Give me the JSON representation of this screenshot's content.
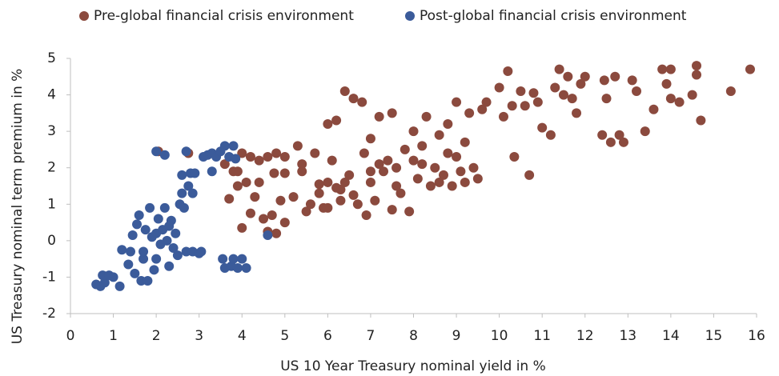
{
  "chart_data": {
    "type": "scatter",
    "xlabel": "US 10 Year Treasury nominal yield in %",
    "ylabel": "US Treasury nominal term premium in %",
    "xlim": [
      0,
      16
    ],
    "xticks": [
      0,
      1,
      2,
      3,
      4,
      5,
      6,
      7,
      8,
      9,
      10,
      11,
      12,
      13,
      14,
      15,
      16
    ],
    "ylim": [
      -2,
      5
    ],
    "yticks": [
      -2,
      -1,
      0,
      1,
      2,
      3,
      4,
      5
    ],
    "legend": "top",
    "grid": false,
    "series": [
      {
        "name": "Pre-global financial crisis environment",
        "color": "#8b4a3e",
        "x": [
          2.75,
          2.05,
          3.6,
          3.9,
          4.0,
          4.2,
          4.4,
          4.6,
          4.8,
          5.0,
          3.7,
          3.9,
          4.1,
          4.2,
          4.0,
          4.3,
          4.5,
          4.6,
          4.7,
          4.8,
          4.9,
          5.0,
          4.75,
          5.0,
          5.2,
          5.3,
          5.4,
          5.5,
          5.6,
          5.7,
          5.8,
          5.9,
          6.0,
          6.0,
          6.1,
          6.2,
          6.3,
          6.4,
          6.5,
          6.6,
          6.7,
          6.8,
          6.9,
          6.85,
          7.0,
          7.0,
          7.1,
          7.2,
          7.3,
          7.4,
          7.5,
          7.5,
          7.6,
          7.7,
          7.8,
          7.9,
          8.0,
          8.0,
          8.1,
          8.2,
          8.3,
          8.4,
          8.5,
          8.6,
          8.7,
          8.8,
          8.9,
          9.0,
          9.0,
          9.1,
          9.2,
          9.3,
          9.4,
          9.5,
          9.6,
          9.7,
          10.0,
          10.1,
          10.2,
          10.3,
          10.35,
          10.5,
          10.6,
          10.7,
          10.8,
          10.9,
          11.0,
          11.2,
          11.3,
          11.5,
          11.6,
          11.7,
          11.8,
          11.9,
          12.0,
          12.4,
          12.5,
          12.6,
          12.7,
          12.8,
          12.9,
          13.1,
          13.4,
          13.6,
          13.8,
          13.9,
          14.0,
          14.2,
          14.5,
          14.6,
          14.6,
          14.7,
          15.4,
          15.85,
          11.4,
          12.45,
          13.2,
          14.0,
          5.8,
          6.2,
          6.4,
          6.6,
          6.3,
          7.0,
          7.2,
          7.6,
          8.2,
          8.6,
          6.0,
          5.4,
          4.4,
          3.8,
          8.8,
          9.2
        ],
        "values": [
          2.4,
          2.45,
          2.1,
          1.9,
          2.4,
          2.3,
          2.2,
          2.3,
          2.4,
          2.3,
          1.15,
          1.5,
          1.6,
          0.75,
          0.35,
          1.2,
          0.6,
          0.25,
          0.7,
          0.2,
          1.1,
          0.5,
          1.85,
          1.85,
          1.2,
          2.6,
          2.1,
          0.8,
          1.0,
          2.4,
          1.3,
          0.9,
          1.6,
          3.2,
          2.2,
          3.3,
          1.4,
          4.1,
          1.8,
          3.9,
          1.0,
          3.8,
          0.7,
          2.4,
          1.6,
          2.8,
          1.1,
          3.4,
          1.9,
          2.2,
          3.5,
          0.85,
          2.0,
          1.3,
          2.5,
          0.8,
          2.2,
          3.0,
          1.7,
          2.6,
          3.4,
          1.5,
          2.0,
          2.9,
          1.8,
          3.2,
          1.5,
          3.8,
          2.3,
          1.9,
          2.7,
          3.5,
          2.0,
          1.7,
          3.6,
          3.8,
          4.2,
          3.4,
          4.65,
          3.7,
          2.3,
          4.1,
          3.7,
          1.8,
          4.05,
          3.8,
          3.1,
          2.9,
          4.2,
          4.0,
          4.5,
          3.9,
          3.5,
          4.3,
          4.5,
          2.9,
          3.9,
          2.7,
          4.5,
          2.9,
          2.7,
          4.4,
          3.0,
          3.6,
          4.7,
          4.3,
          3.9,
          3.8,
          4.0,
          4.8,
          4.55,
          3.3,
          4.1,
          4.7,
          4.7,
          4.4,
          4.1,
          4.7,
          1.55,
          1.45,
          1.6,
          1.25,
          1.1,
          1.9,
          2.1,
          1.5,
          2.1,
          1.6,
          0.9,
          1.9,
          1.6,
          1.9,
          2.4,
          1.6
        ]
      },
      {
        "name": "Post-global financial crisis environment",
        "color": "#3b5b9a",
        "x": [
          0.6,
          0.7,
          0.8,
          0.75,
          0.9,
          1.0,
          1.15,
          1.2,
          1.35,
          1.4,
          1.45,
          1.5,
          1.55,
          1.6,
          1.65,
          1.7,
          1.75,
          1.8,
          1.85,
          1.9,
          1.95,
          2.0,
          2.05,
          2.1,
          2.15,
          2.2,
          2.25,
          2.3,
          2.35,
          2.4,
          2.45,
          2.5,
          2.55,
          2.6,
          2.65,
          2.7,
          2.75,
          2.8,
          2.85,
          2.9,
          3.0,
          3.05,
          3.1,
          3.2,
          3.3,
          3.4,
          3.5,
          3.6,
          3.7,
          3.8,
          3.85,
          3.3,
          3.55,
          3.6,
          3.75,
          3.8,
          3.9,
          4.0,
          4.1,
          2.0,
          2.2,
          2.7,
          2.6,
          2.85,
          1.7,
          2.0,
          2.3,
          4.6
        ],
        "values": [
          -1.2,
          -1.25,
          -1.15,
          -0.95,
          -0.95,
          -1.0,
          -1.25,
          -0.25,
          -0.65,
          -0.3,
          0.15,
          -0.9,
          0.45,
          0.7,
          -1.1,
          -0.5,
          0.3,
          -1.1,
          0.9,
          0.1,
          -0.8,
          0.2,
          0.6,
          -0.1,
          0.3,
          0.9,
          0.0,
          -0.7,
          0.55,
          -0.2,
          0.2,
          -0.4,
          1.0,
          1.3,
          0.9,
          -0.3,
          1.5,
          1.85,
          -0.3,
          1.85,
          -0.35,
          -0.3,
          2.3,
          2.35,
          2.4,
          2.3,
          2.45,
          2.6,
          2.3,
          2.6,
          2.25,
          1.9,
          -0.5,
          -0.75,
          -0.7,
          -0.5,
          -0.75,
          -0.5,
          -0.75,
          2.45,
          2.35,
          2.45,
          1.8,
          1.3,
          -0.3,
          -0.5,
          0.4,
          0.15
        ]
      }
    ]
  }
}
